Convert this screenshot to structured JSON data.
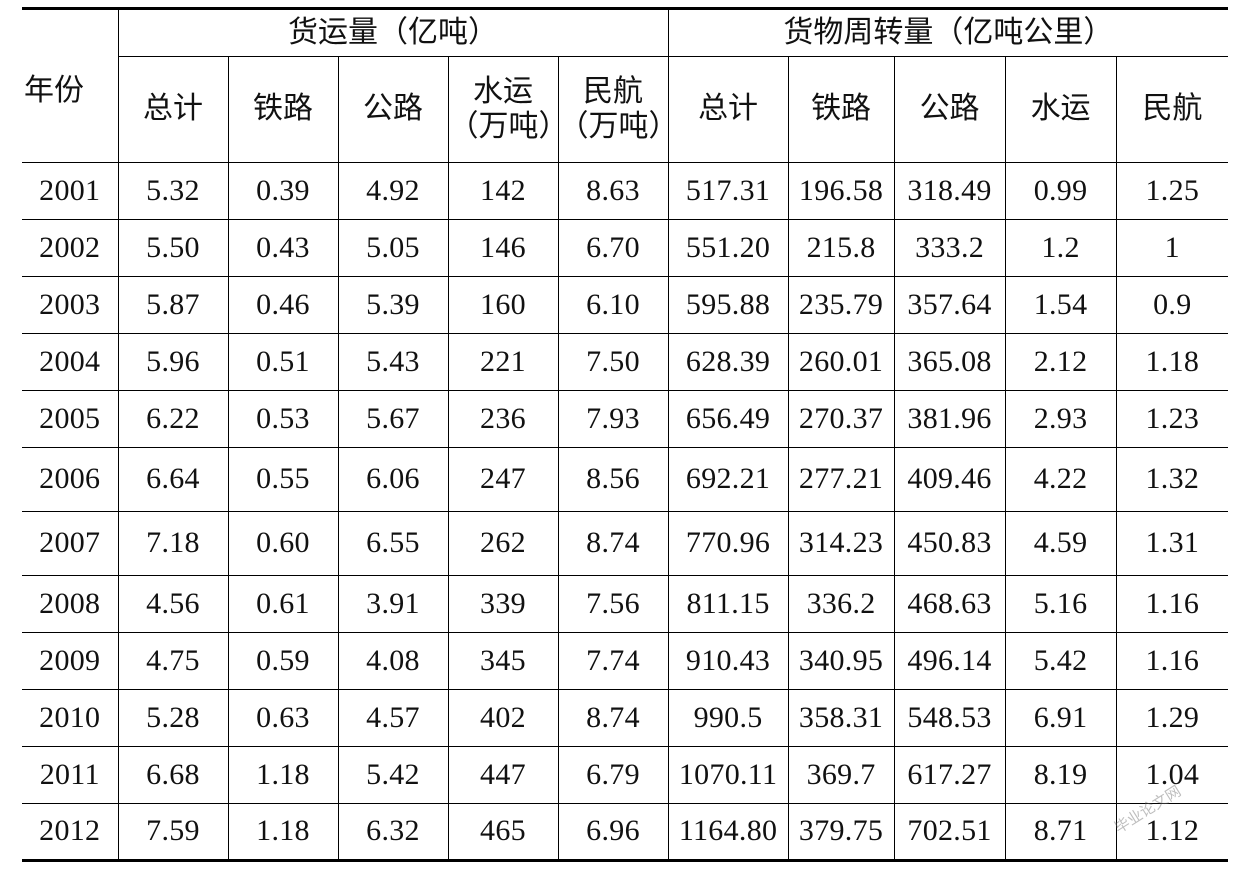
{
  "table": {
    "header_year": "年份",
    "groups": [
      {
        "label": "货运量（亿吨）"
      },
      {
        "label": "货物周转量（亿吨公里）"
      }
    ],
    "sub_headers": [
      {
        "line1": "总计",
        "line2": ""
      },
      {
        "line1": "铁路",
        "line2": ""
      },
      {
        "line1": "公路",
        "line2": ""
      },
      {
        "line1": "水运",
        "line2": "（万吨）"
      },
      {
        "line1": "民航",
        "line2": "（万吨）"
      },
      {
        "line1": "总计",
        "line2": ""
      },
      {
        "line1": "铁路",
        "line2": ""
      },
      {
        "line1": "公路",
        "line2": ""
      },
      {
        "line1": "水运",
        "line2": ""
      },
      {
        "line1": "民航",
        "line2": ""
      }
    ],
    "rows": [
      {
        "year": "2001",
        "cells": [
          "5.32",
          "0.39",
          "4.92",
          "142",
          "8.63",
          "517.31",
          "196.58",
          "318.49",
          "0.99",
          "1.25"
        ]
      },
      {
        "year": "2002",
        "cells": [
          "5.50",
          "0.43",
          "5.05",
          "146",
          "6.70",
          "551.20",
          "215.8",
          "333.2",
          "1.2",
          "1"
        ]
      },
      {
        "year": "2003",
        "cells": [
          "5.87",
          "0.46",
          "5.39",
          "160",
          "6.10",
          "595.88",
          "235.79",
          "357.64",
          "1.54",
          "0.9"
        ]
      },
      {
        "year": "2004",
        "cells": [
          "5.96",
          "0.51",
          "5.43",
          "221",
          "7.50",
          "628.39",
          "260.01",
          "365.08",
          "2.12",
          "1.18"
        ]
      },
      {
        "year": "2005",
        "cells": [
          "6.22",
          "0.53",
          "5.67",
          "236",
          "7.93",
          "656.49",
          "270.37",
          "381.96",
          "2.93",
          "1.23"
        ]
      },
      {
        "year": "2006",
        "cells": [
          "6.64",
          "0.55",
          "6.06",
          "247",
          "8.56",
          "692.21",
          "277.21",
          "409.46",
          "4.22",
          "1.32"
        ]
      },
      {
        "year": "2007",
        "cells": [
          "7.18",
          "0.60",
          "6.55",
          "262",
          "8.74",
          "770.96",
          "314.23",
          "450.83",
          "4.59",
          "1.31"
        ]
      },
      {
        "year": "2008",
        "cells": [
          "4.56",
          "0.61",
          "3.91",
          "339",
          "7.56",
          "811.15",
          "336.2",
          "468.63",
          "5.16",
          "1.16"
        ]
      },
      {
        "year": "2009",
        "cells": [
          "4.75",
          "0.59",
          "4.08",
          "345",
          "7.74",
          "910.43",
          "340.95",
          "496.14",
          "5.42",
          "1.16"
        ]
      },
      {
        "year": "2010",
        "cells": [
          "5.28",
          "0.63",
          "4.57",
          "402",
          "8.74",
          "990.5",
          "358.31",
          "548.53",
          "6.91",
          "1.29"
        ]
      },
      {
        "year": "2011",
        "cells": [
          "6.68",
          "1.18",
          "5.42",
          "447",
          "6.79",
          "1070.11",
          "369.7",
          "617.27",
          "8.19",
          "1.04"
        ]
      },
      {
        "year": "2012",
        "cells": [
          "7.59",
          "1.18",
          "6.32",
          "465",
          "6.96",
          "1164.80",
          "379.75",
          "702.51",
          "8.71",
          "1.12"
        ]
      }
    ]
  },
  "watermark": "毕业论文网"
}
